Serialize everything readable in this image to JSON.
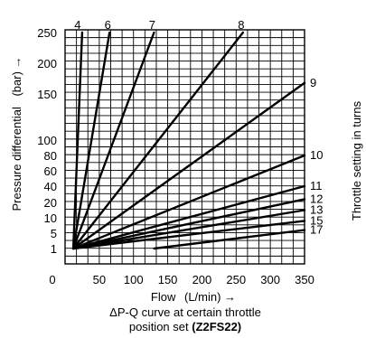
{
  "chart_data": {
    "type": "line",
    "xlabel": "Flow",
    "xunit": "(L/min) →",
    "ylabel": "Pressure differential",
    "yunit": "(bar) →",
    "right_label": "Throttle setting in turns",
    "x_ticks": [
      0,
      50,
      100,
      150,
      200,
      250,
      300,
      350
    ],
    "y_ticks": [
      1,
      5,
      10,
      20,
      40,
      60,
      80,
      100,
      150,
      200,
      250
    ],
    "xlim": [
      0,
      350
    ],
    "ylim": [
      0,
      250
    ],
    "grid": true,
    "y_scale": "piecewise",
    "series": [
      {
        "name": "4",
        "points": [
          [
            12,
            1
          ],
          [
            25,
            250
          ]
        ]
      },
      {
        "name": "6",
        "points": [
          [
            12,
            1
          ],
          [
            65,
            250
          ]
        ]
      },
      {
        "name": "7",
        "points": [
          [
            12,
            1
          ],
          [
            130,
            250
          ]
        ]
      },
      {
        "name": "8",
        "points": [
          [
            12,
            1
          ],
          [
            260,
            250
          ]
        ]
      },
      {
        "name": "9",
        "points": [
          [
            12,
            1
          ],
          [
            350,
            168
          ]
        ]
      },
      {
        "name": "10",
        "points": [
          [
            12,
            1
          ],
          [
            350,
            80
          ]
        ]
      },
      {
        "name": "11",
        "points": [
          [
            12,
            1
          ],
          [
            350,
            40
          ]
        ]
      },
      {
        "name": "12",
        "points": [
          [
            12,
            1
          ],
          [
            350,
            24
          ]
        ]
      },
      {
        "name": "13",
        "points": [
          [
            12,
            1
          ],
          [
            350,
            15
          ]
        ]
      },
      {
        "name": "15",
        "points": [
          [
            12,
            1
          ],
          [
            350,
            9
          ]
        ]
      },
      {
        "name": "17",
        "points": [
          [
            130,
            1
          ],
          [
            350,
            6
          ]
        ]
      }
    ]
  },
  "caption": {
    "line1": "ΔP-Q curve at certain throttle",
    "line2": "position set",
    "model": "(Z2FS22)"
  }
}
